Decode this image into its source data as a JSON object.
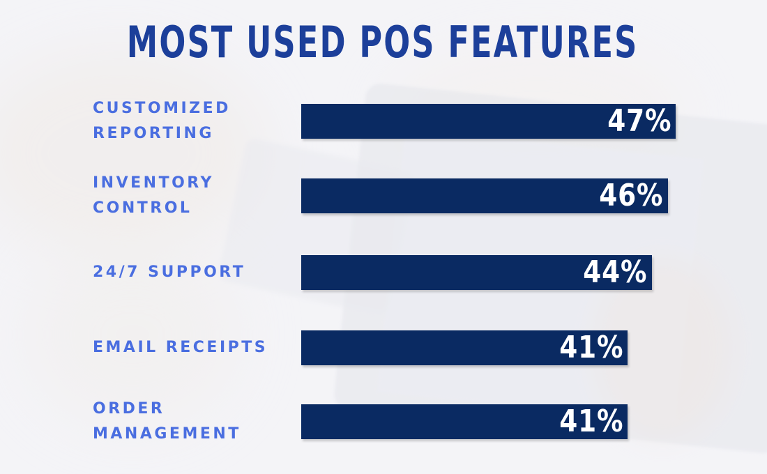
{
  "chart_data": {
    "type": "bar",
    "orientation": "horizontal",
    "title": "MOST USED POS FEATURES",
    "categories": [
      [
        "CUSTOMIZED",
        "REPORTING"
      ],
      [
        "INVENTORY",
        "CONTROL"
      ],
      [
        "24/7 SUPPORT"
      ],
      [
        "EMAIL RECEIPTS"
      ],
      [
        "ORDER",
        "MANAGEMENT"
      ]
    ],
    "values": [
      47,
      46,
      44,
      41,
      41
    ],
    "value_labels": [
      "47%",
      "46%",
      "44%",
      "41%",
      "41%"
    ],
    "xlim": [
      0,
      100
    ],
    "grid": false,
    "legend": "none"
  },
  "colors": {
    "title": "#1c3f9a",
    "label": "#4a6ee0",
    "bar": "#0a2a62",
    "value_text": "#ffffff"
  }
}
